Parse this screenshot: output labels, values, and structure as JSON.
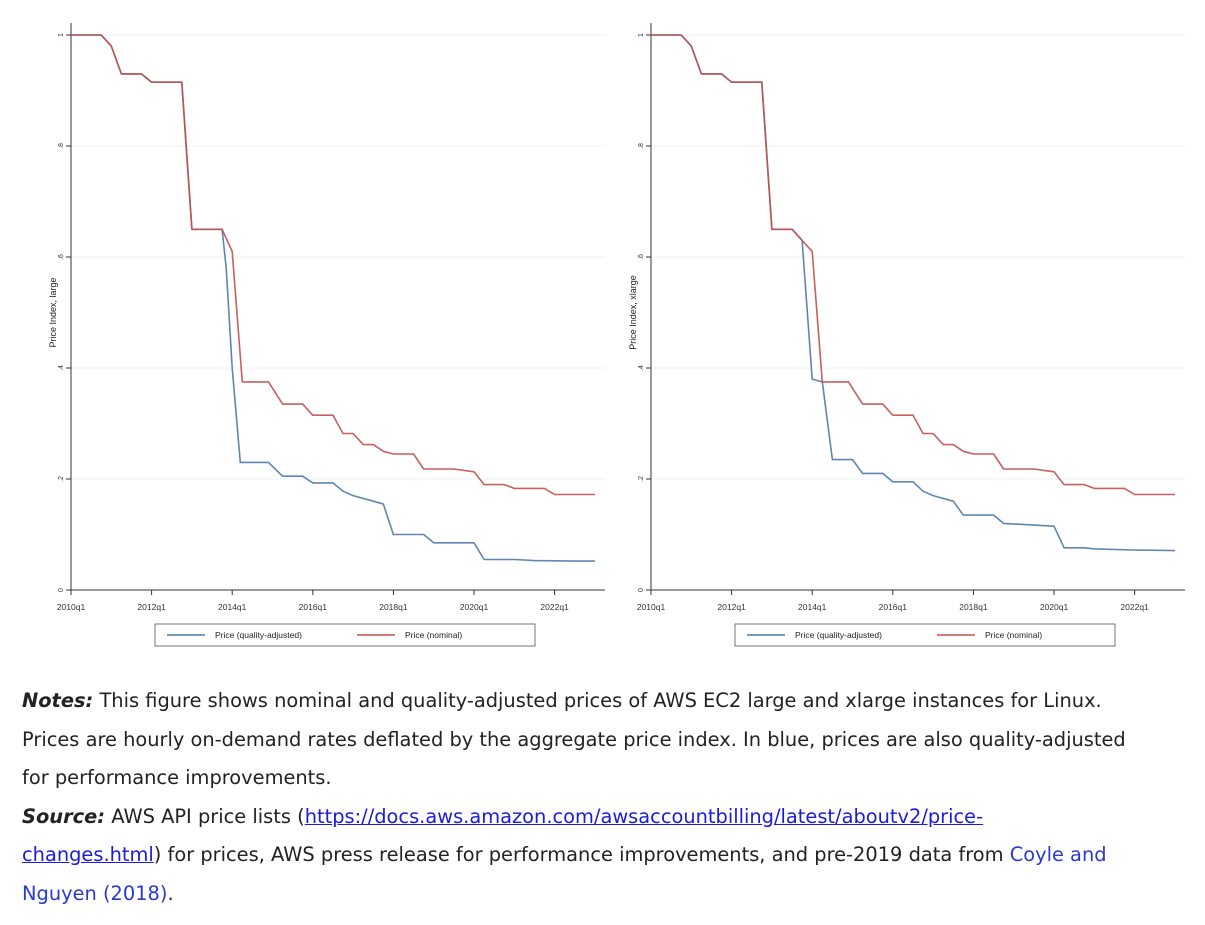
{
  "chart_data": [
    {
      "type": "line",
      "title": "",
      "xlabel": "",
      "ylabel": "Price Index, large",
      "x_ticks": [
        "2010q1",
        "2012q1",
        "2014q1",
        "2016q1",
        "2018q1",
        "2020q1",
        "2022q1"
      ],
      "y_ticks": [
        "0",
        ".2",
        ".4",
        ".6",
        ".8",
        "1"
      ],
      "xlim": [
        2010.0,
        2023.25
      ],
      "ylim": [
        0,
        1
      ],
      "grid": true,
      "legend_position": "bottom",
      "series": [
        {
          "name": "Price (quality-adjusted)",
          "color": "#4e79a7",
          "points": [
            [
              2010.0,
              1.0
            ],
            [
              2010.75,
              1.0
            ],
            [
              2011.0,
              0.98
            ],
            [
              2011.25,
              0.93
            ],
            [
              2011.75,
              0.93
            ],
            [
              2012.0,
              0.915
            ],
            [
              2012.75,
              0.915
            ],
            [
              2013.0,
              0.65
            ],
            [
              2013.75,
              0.65
            ],
            [
              2013.85,
              0.58
            ],
            [
              2014.0,
              0.4
            ],
            [
              2014.2,
              0.23
            ],
            [
              2014.9,
              0.23
            ],
            [
              2015.25,
              0.205
            ],
            [
              2015.75,
              0.205
            ],
            [
              2016.0,
              0.193
            ],
            [
              2016.5,
              0.193
            ],
            [
              2016.75,
              0.178
            ],
            [
              2017.0,
              0.17
            ],
            [
              2017.5,
              0.16
            ],
            [
              2017.75,
              0.155
            ],
            [
              2018.0,
              0.1
            ],
            [
              2018.75,
              0.1
            ],
            [
              2019.0,
              0.085
            ],
            [
              2019.75,
              0.085
            ],
            [
              2020.0,
              0.085
            ],
            [
              2020.25,
              0.055
            ],
            [
              2021.0,
              0.055
            ],
            [
              2021.5,
              0.053
            ],
            [
              2022.5,
              0.052
            ],
            [
              2023.0,
              0.052
            ]
          ]
        },
        {
          "name": "Price (nominal)",
          "color": "#c0504d",
          "points": [
            [
              2010.0,
              1.0
            ],
            [
              2010.75,
              1.0
            ],
            [
              2011.0,
              0.98
            ],
            [
              2011.25,
              0.93
            ],
            [
              2011.75,
              0.93
            ],
            [
              2012.0,
              0.915
            ],
            [
              2012.75,
              0.915
            ],
            [
              2013.0,
              0.65
            ],
            [
              2013.75,
              0.65
            ],
            [
              2014.0,
              0.61
            ],
            [
              2014.25,
              0.375
            ],
            [
              2014.9,
              0.375
            ],
            [
              2015.25,
              0.335
            ],
            [
              2015.75,
              0.335
            ],
            [
              2016.0,
              0.315
            ],
            [
              2016.5,
              0.315
            ],
            [
              2016.75,
              0.282
            ],
            [
              2017.0,
              0.282
            ],
            [
              2017.25,
              0.262
            ],
            [
              2017.5,
              0.262
            ],
            [
              2017.75,
              0.25
            ],
            [
              2018.0,
              0.245
            ],
            [
              2018.5,
              0.245
            ],
            [
              2018.75,
              0.218
            ],
            [
              2019.5,
              0.218
            ],
            [
              2020.0,
              0.213
            ],
            [
              2020.25,
              0.19
            ],
            [
              2020.75,
              0.19
            ],
            [
              2021.0,
              0.183
            ],
            [
              2021.75,
              0.183
            ],
            [
              2022.0,
              0.172
            ],
            [
              2023.0,
              0.172
            ]
          ]
        }
      ]
    },
    {
      "type": "line",
      "title": "",
      "xlabel": "",
      "ylabel": "Price Index, xlarge",
      "x_ticks": [
        "2010q1",
        "2012q1",
        "2014q1",
        "2016q1",
        "2018q1",
        "2020q1",
        "2022q1"
      ],
      "y_ticks": [
        "0",
        ".2",
        ".4",
        ".6",
        ".8",
        "1"
      ],
      "xlim": [
        2010.0,
        2023.25
      ],
      "ylim": [
        0,
        1
      ],
      "grid": true,
      "legend_position": "bottom",
      "series": [
        {
          "name": "Price (quality-adjusted)",
          "color": "#4e79a7",
          "points": [
            [
              2010.0,
              1.0
            ],
            [
              2010.75,
              1.0
            ],
            [
              2011.0,
              0.98
            ],
            [
              2011.25,
              0.93
            ],
            [
              2011.75,
              0.93
            ],
            [
              2012.0,
              0.915
            ],
            [
              2012.75,
              0.915
            ],
            [
              2013.0,
              0.65
            ],
            [
              2013.5,
              0.65
            ],
            [
              2013.75,
              0.63
            ],
            [
              2014.0,
              0.38
            ],
            [
              2014.25,
              0.375
            ],
            [
              2014.5,
              0.235
            ],
            [
              2015.0,
              0.235
            ],
            [
              2015.25,
              0.21
            ],
            [
              2015.75,
              0.21
            ],
            [
              2016.0,
              0.195
            ],
            [
              2016.5,
              0.195
            ],
            [
              2016.75,
              0.178
            ],
            [
              2017.0,
              0.17
            ],
            [
              2017.5,
              0.16
            ],
            [
              2017.75,
              0.135
            ],
            [
              2018.5,
              0.135
            ],
            [
              2018.75,
              0.12
            ],
            [
              2020.0,
              0.115
            ],
            [
              2020.25,
              0.076
            ],
            [
              2020.75,
              0.076
            ],
            [
              2021.0,
              0.074
            ],
            [
              2022.0,
              0.072
            ],
            [
              2023.0,
              0.071
            ]
          ]
        },
        {
          "name": "Price (nominal)",
          "color": "#c0504d",
          "points": [
            [
              2010.0,
              1.0
            ],
            [
              2010.75,
              1.0
            ],
            [
              2011.0,
              0.98
            ],
            [
              2011.25,
              0.93
            ],
            [
              2011.75,
              0.93
            ],
            [
              2012.0,
              0.915
            ],
            [
              2012.75,
              0.915
            ],
            [
              2013.0,
              0.65
            ],
            [
              2013.5,
              0.65
            ],
            [
              2013.75,
              0.63
            ],
            [
              2014.0,
              0.61
            ],
            [
              2014.25,
              0.375
            ],
            [
              2014.9,
              0.375
            ],
            [
              2015.25,
              0.335
            ],
            [
              2015.75,
              0.335
            ],
            [
              2016.0,
              0.315
            ],
            [
              2016.5,
              0.315
            ],
            [
              2016.75,
              0.282
            ],
            [
              2017.0,
              0.282
            ],
            [
              2017.25,
              0.262
            ],
            [
              2017.5,
              0.262
            ],
            [
              2017.75,
              0.25
            ],
            [
              2018.0,
              0.245
            ],
            [
              2018.5,
              0.245
            ],
            [
              2018.75,
              0.218
            ],
            [
              2019.5,
              0.218
            ],
            [
              2020.0,
              0.213
            ],
            [
              2020.25,
              0.19
            ],
            [
              2020.75,
              0.19
            ],
            [
              2021.0,
              0.183
            ],
            [
              2021.75,
              0.183
            ],
            [
              2022.0,
              0.172
            ],
            [
              2023.0,
              0.172
            ]
          ]
        }
      ]
    }
  ],
  "notes": {
    "notes_label": "Notes:",
    "notes_line1": " This figure shows nominal and quality-adjusted prices of AWS EC2 large and xlarge instances for Linux.",
    "notes_line2": "Prices are hourly on-demand rates deflated by the aggregate price index. In blue, prices are also quality-adjusted",
    "notes_line3": "for performance improvements.",
    "source_label": "Source:",
    "source_w1": "AWS",
    "source_w2": "API",
    "source_w3": "price",
    "source_w4": "lists",
    "source_open": "(",
    "source_url_part1": "https://docs.aws.amazon.com/awsaccountbilling/latest/aboutv2/price-",
    "source_url_part2": "changes.html",
    "source_line2_rest": ") for prices, AWS press release for performance improvements, and pre-2019 data from ",
    "cite_part1": "Coyle and",
    "cite_part2": "Nguyen (2018)",
    "source_end": "."
  }
}
